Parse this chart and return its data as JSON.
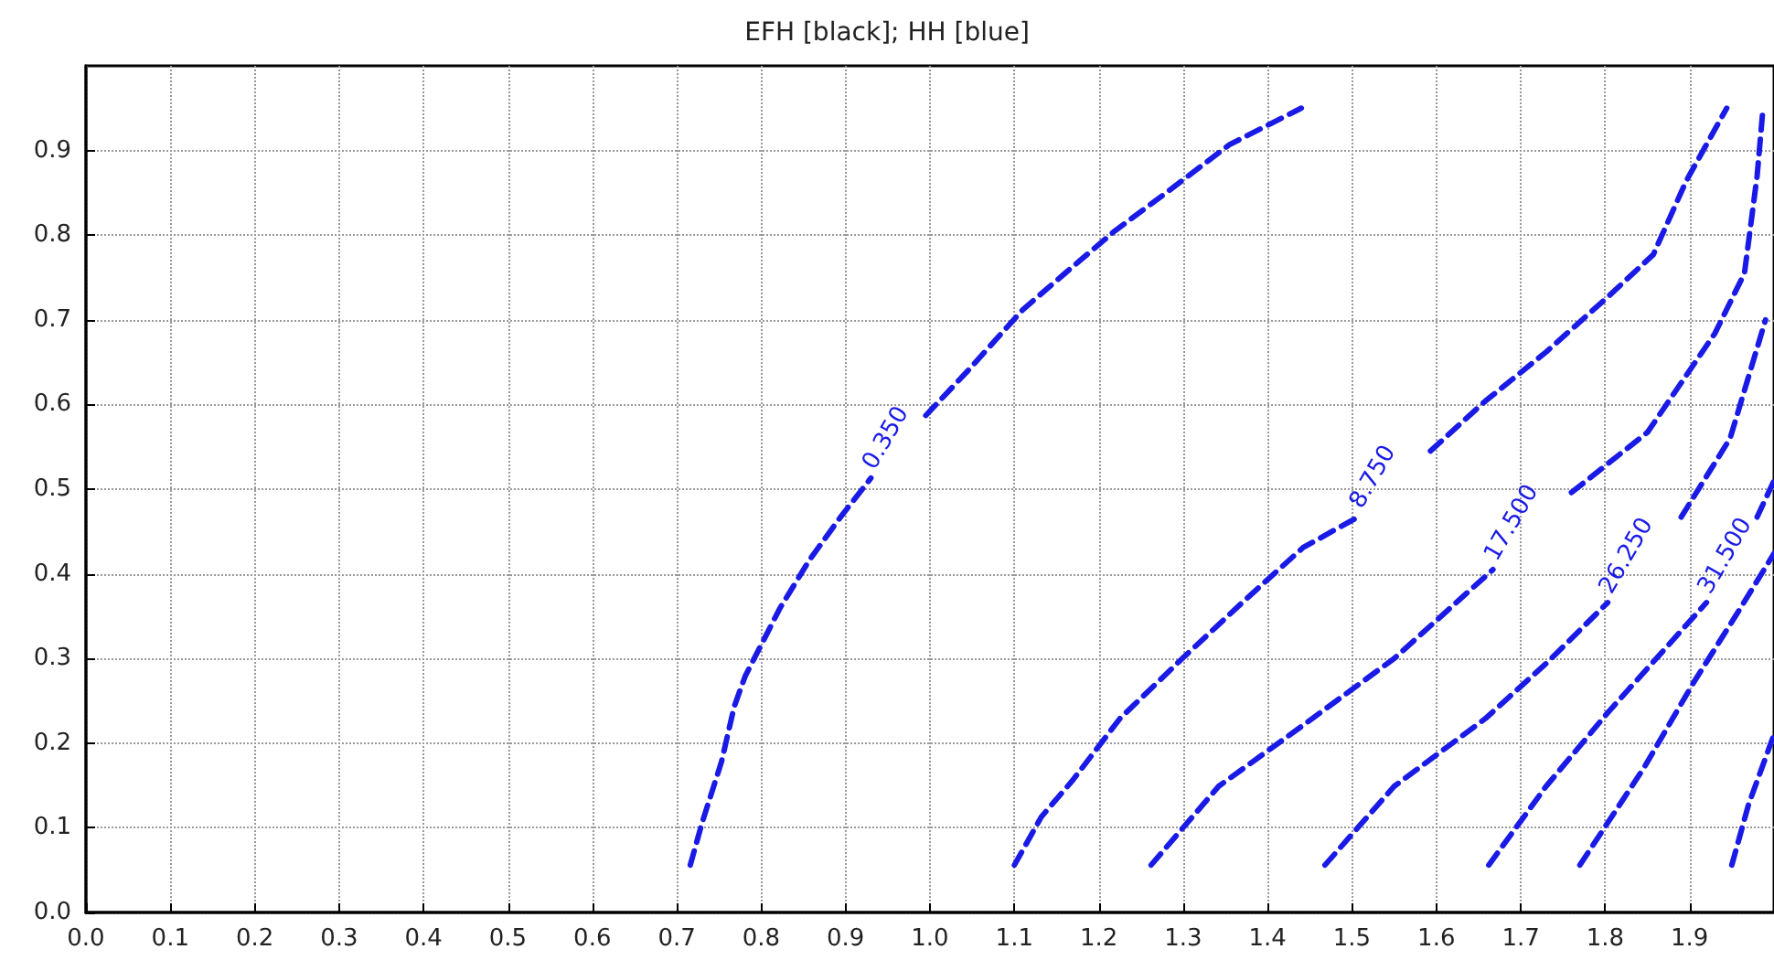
{
  "chart_data": {
    "type": "line",
    "title": "EFH [black]; HH [blue]",
    "xlim": [
      0,
      2.0
    ],
    "ylim": [
      0,
      1.0
    ],
    "xticks": [
      {
        "value": 0,
        "label": "0.0"
      },
      0.1,
      0.2,
      0.3,
      0.4,
      0.5,
      0.6,
      0.7,
      0.8,
      0.9,
      {
        "value": 1,
        "label": "1.0"
      },
      1.1,
      1.2,
      1.3,
      1.4,
      1.5,
      1.6,
      1.7,
      1.8,
      1.9
    ],
    "yticks": [
      {
        "value": 0,
        "label": "0.0"
      },
      0.1,
      0.2,
      0.3,
      0.4,
      0.5,
      0.6,
      0.7,
      0.8,
      0.9
    ],
    "grid": true,
    "legend": false,
    "marker": "none",
    "line_style": "dashed",
    "series": [
      {
        "name": "0.350",
        "color": "#1a1ae6",
        "x": [
          0.716,
          0.73,
          0.753,
          0.768,
          0.781,
          0.8,
          0.822,
          0.857,
          0.894,
          0.93,
          0.96,
          0.995,
          1.045,
          1.11,
          1.16,
          1.219,
          1.277,
          1.355,
          1.44
        ],
        "values": [
          0.056,
          0.106,
          0.178,
          0.243,
          0.279,
          0.316,
          0.359,
          0.416,
          0.467,
          0.513,
          null,
          0.587,
          0.64,
          0.712,
          0.755,
          0.805,
          0.848,
          0.907,
          0.95
        ]
      },
      {
        "name": "8.750",
        "color": "#1a1ae6",
        "x": [
          1.1,
          1.132,
          1.169,
          1.225,
          1.299,
          1.37,
          1.442,
          1.507,
          1.55,
          1.593,
          1.658,
          1.73,
          1.803,
          1.857,
          1.896,
          1.944
        ],
        "values": [
          0.056,
          0.113,
          0.156,
          0.229,
          0.3,
          0.366,
          0.431,
          0.467,
          null,
          0.545,
          0.604,
          0.662,
          0.727,
          0.777,
          0.864,
          0.95
        ]
      },
      {
        "name": "17.500",
        "color": "#1a1ae6",
        "x": [
          1.262,
          1.342,
          1.442,
          1.55,
          1.667,
          1.71,
          1.76,
          1.85,
          1.93,
          1.965,
          1.98,
          1.987
        ],
        "values": [
          0.056,
          0.149,
          0.221,
          0.3,
          0.405,
          null,
          0.496,
          0.567,
          0.684,
          0.755,
          0.87,
          0.95
        ]
      },
      {
        "name": "26.250",
        "color": "#1a1ae6",
        "x": [
          1.468,
          1.55,
          1.658,
          1.73,
          1.803,
          1.85,
          1.89,
          1.948,
          1.99
        ],
        "values": [
          0.056,
          0.149,
          0.229,
          0.294,
          0.366,
          null,
          0.467,
          0.56,
          0.7
        ]
      },
      {
        "name": "31.500",
        "color": "#1a1ae6",
        "x": [
          1.662,
          1.73,
          1.803,
          1.875,
          1.92,
          1.95,
          1.98,
          2.0
        ],
        "values": [
          0.056,
          0.149,
          0.236,
          0.316,
          0.366,
          null,
          0.467,
          0.51
        ]
      },
      {
        "color": "#1a1ae6",
        "x": [
          1.77,
          1.846,
          1.905,
          1.955,
          2.0
        ],
        "values": [
          0.056,
          0.171,
          0.272,
          0.351,
          0.424
        ]
      },
      {
        "color": "#1a1ae6",
        "x": [
          1.95,
          1.97,
          2.0
        ],
        "values": [
          0.056,
          0.128,
          0.21
        ]
      }
    ]
  }
}
